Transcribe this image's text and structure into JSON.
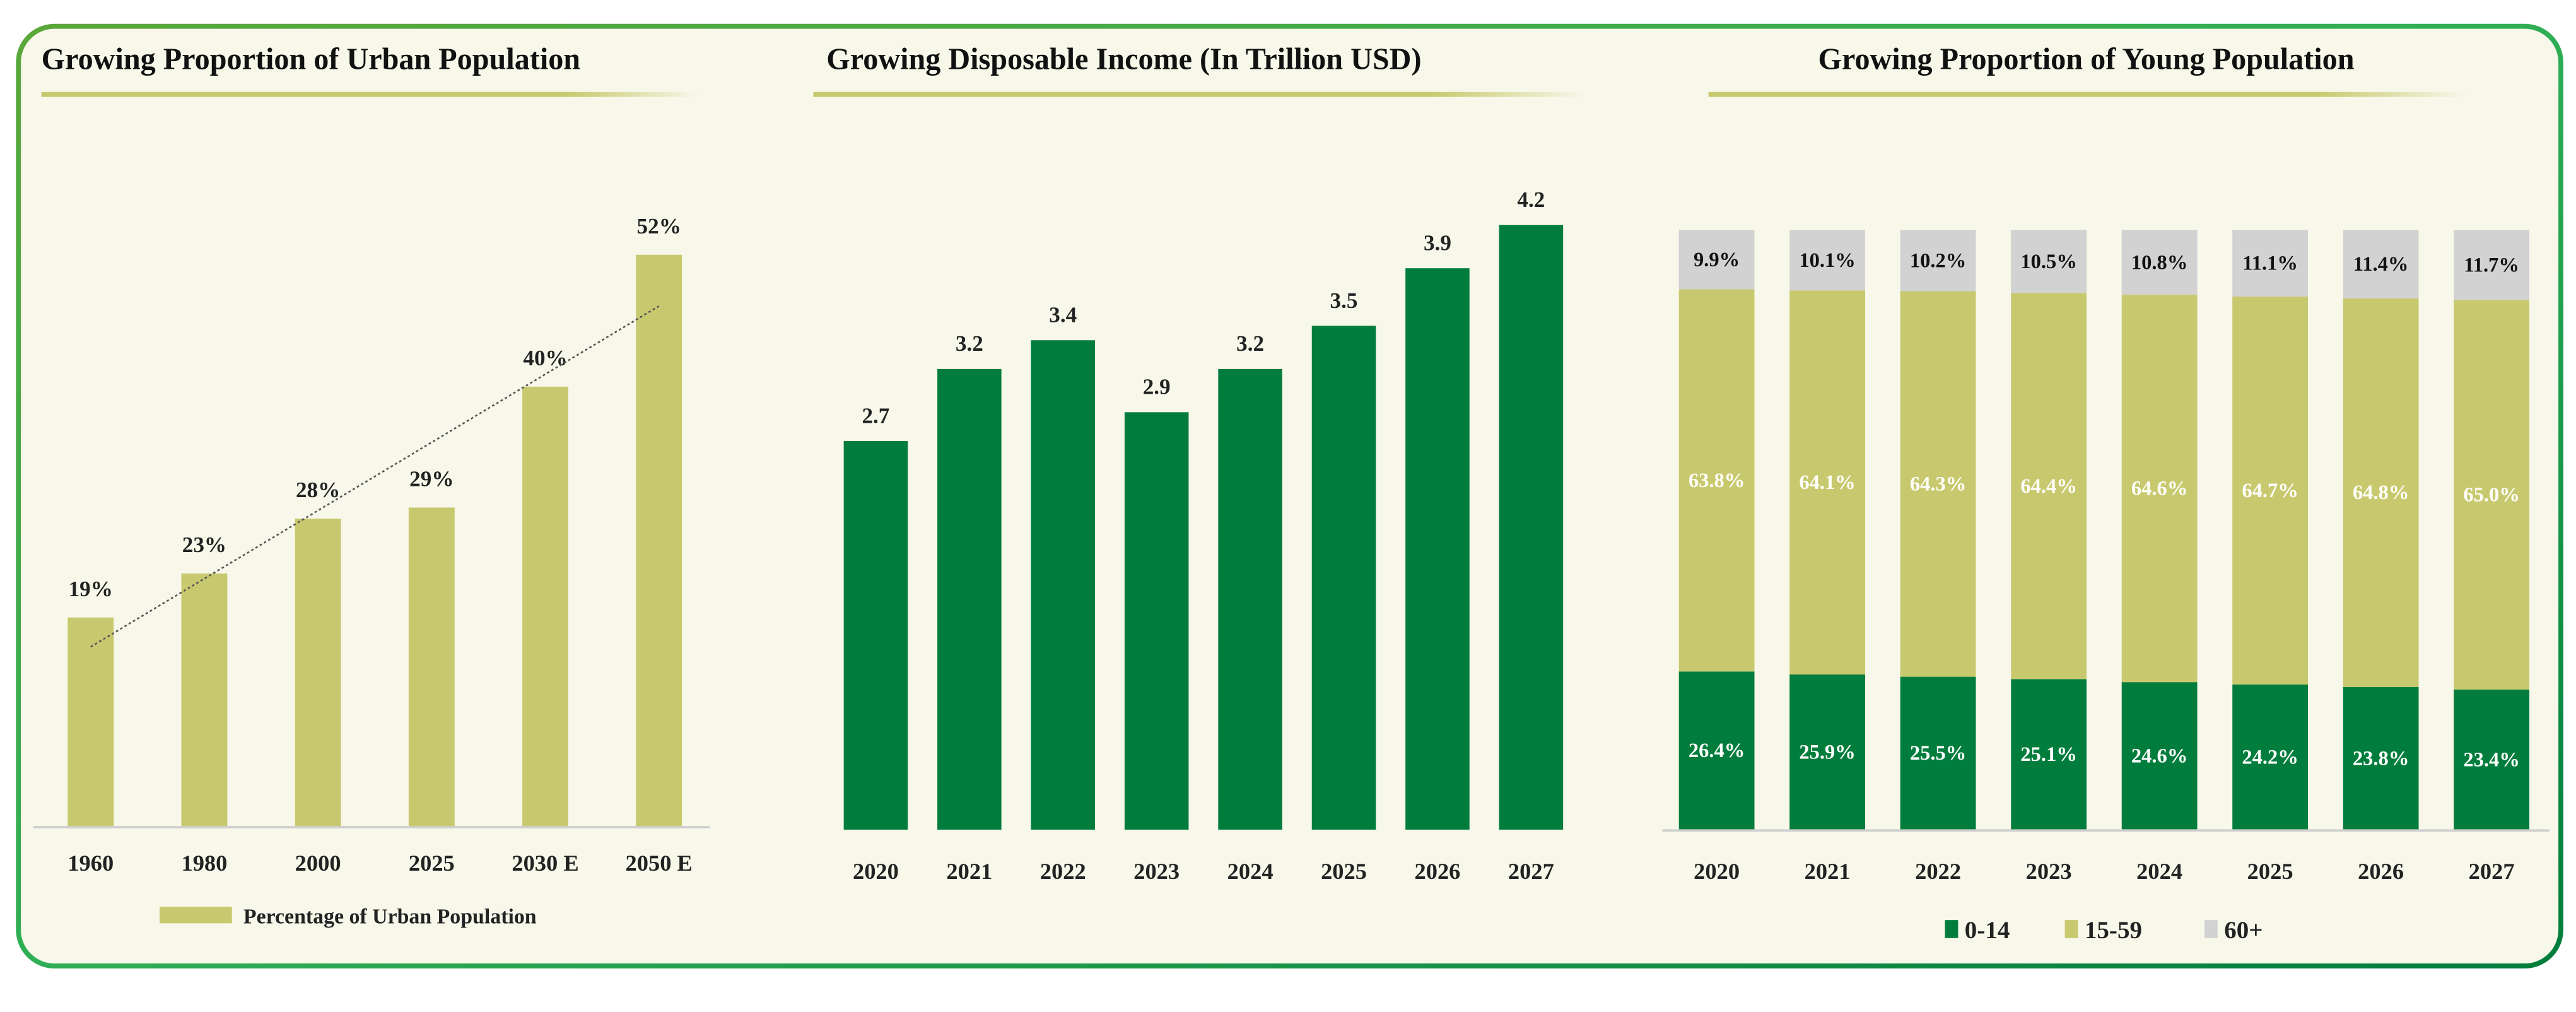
{
  "colors": {
    "background": "#f7f7ea",
    "frame": "#1f9a4a",
    "olive": "#c8c96e",
    "green": "#007d3c",
    "gray": "#d2d2d2"
  },
  "chart_data": [
    {
      "type": "bar",
      "title": "Growing Proportion of Urban Population",
      "categories": [
        "1960",
        "1980",
        "2000",
        "2025",
        "2030 E",
        "2050 E"
      ],
      "series": [
        {
          "name": "Percentage of Urban Population",
          "values": [
            19,
            23,
            28,
            29,
            40,
            52
          ],
          "labels": [
            "19%",
            "23%",
            "28%",
            "29%",
            "40%",
            "52%"
          ],
          "color": "#c8c96e"
        }
      ],
      "trendline": "linear, dotted",
      "ylim": [
        0,
        55
      ],
      "legend": "bottom",
      "grid": false
    },
    {
      "type": "bar",
      "title": "Growing Disposable Income (In Trillion USD)",
      "categories": [
        "2020",
        "2021",
        "2022",
        "2023",
        "2024",
        "2025",
        "2026",
        "2027"
      ],
      "values": [
        2.7,
        3.2,
        3.4,
        2.9,
        3.2,
        3.5,
        3.9,
        4.2
      ],
      "labels": [
        "2.7",
        "3.2",
        "3.4",
        "2.9",
        "3.2",
        "3.5",
        "3.9",
        "4.2"
      ],
      "color": "#007d3c",
      "ylim": [
        0,
        4.2
      ],
      "grid": false
    },
    {
      "type": "bar",
      "stacked": "100%",
      "title": "Growing Proportion of Young Population",
      "categories": [
        "2020",
        "2021",
        "2022",
        "2023",
        "2024",
        "2025",
        "2026",
        "2027"
      ],
      "series": [
        {
          "name": "0-14",
          "values": [
            26.4,
            25.9,
            25.5,
            25.1,
            24.6,
            24.2,
            23.8,
            23.4
          ],
          "labels": [
            "26.4%",
            "25.9%",
            "25.5%",
            "25.1%",
            "24.6%",
            "24.2%",
            "23.8%",
            "23.4%"
          ],
          "color": "#007d3c",
          "label_color": "#ffffff"
        },
        {
          "name": "15-59",
          "values": [
            63.8,
            64.1,
            64.3,
            64.4,
            64.6,
            64.7,
            64.8,
            65.0
          ],
          "labels": [
            "63.8%",
            "64.1%",
            "64.3%",
            "64.4%",
            "64.6%",
            "64.7%",
            "64.8%",
            "65.0%"
          ],
          "color": "#c8c96e",
          "label_color": "#ffffff"
        },
        {
          "name": "60+",
          "values": [
            9.9,
            10.1,
            10.2,
            10.5,
            10.8,
            11.1,
            11.4,
            11.7
          ],
          "labels": [
            "9.9%",
            "10.1%",
            "10.2%",
            "10.5%",
            "10.8%",
            "11.1%",
            "11.4%",
            "11.7%"
          ],
          "color": "#d2d2d2",
          "label_color": "#111111"
        }
      ],
      "ylim": [
        0,
        100
      ],
      "legend": "bottom",
      "grid": false
    }
  ]
}
